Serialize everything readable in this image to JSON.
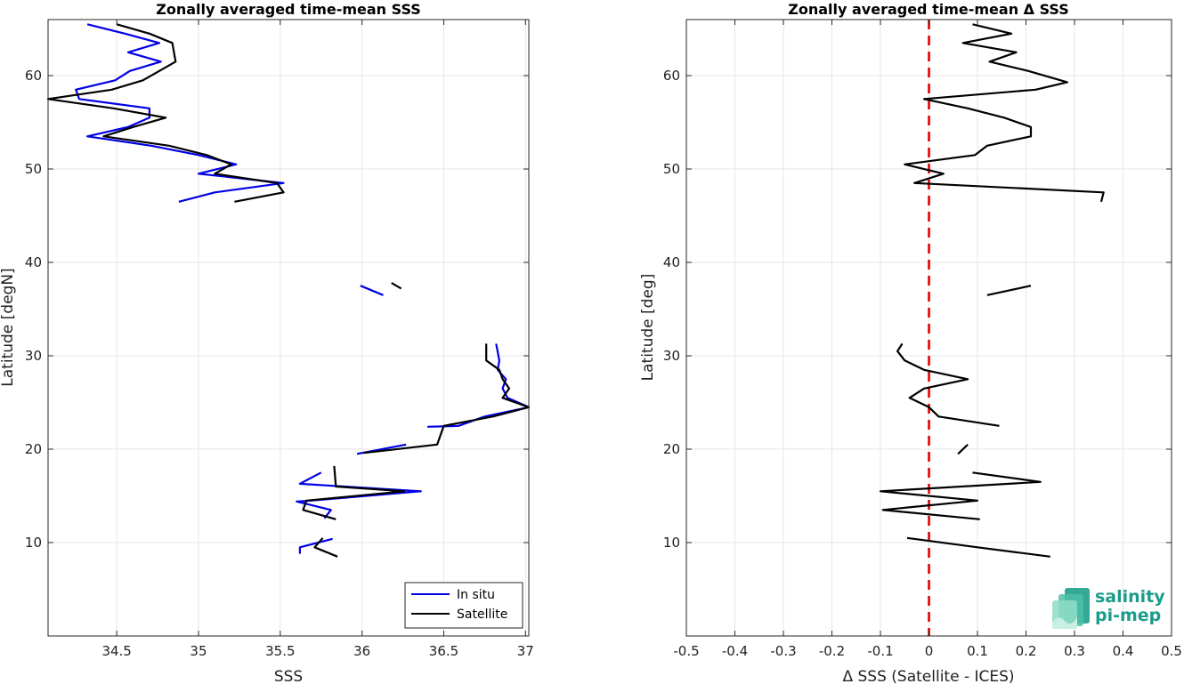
{
  "chart_data": [
    {
      "type": "line",
      "title": "Zonally averaged time-mean SSS",
      "xlabel": "SSS",
      "ylabel": "Latitude [degN]",
      "xlim": [
        34.08,
        37.02
      ],
      "ylim": [
        0,
        66
      ],
      "xticks": [
        34.5,
        35,
        35.5,
        36,
        36.5,
        37
      ],
      "xtick_labels": [
        "34.5",
        "35",
        "35.5",
        "36",
        "36.5",
        "37"
      ],
      "yticks": [
        10,
        20,
        30,
        40,
        50,
        60
      ],
      "ytick_labels": [
        "10",
        "20",
        "30",
        "40",
        "50",
        "60"
      ],
      "grid": true,
      "legend": {
        "position": "bottom-right",
        "entries": [
          "In situ",
          "Satellite"
        ]
      },
      "series": [
        {
          "name": "In situ",
          "color": "#0000e6",
          "segments": [
            [
              [
                34.32,
                65.5
              ],
              [
                34.55,
                64.5
              ],
              [
                34.76,
                63.5
              ],
              [
                34.57,
                62.5
              ],
              [
                34.77,
                61.5
              ],
              [
                34.58,
                60.5
              ],
              [
                34.49,
                59.5
              ],
              [
                34.25,
                58.5
              ],
              [
                34.27,
                57.5
              ],
              [
                34.7,
                56.5
              ],
              [
                34.7,
                55.5
              ],
              [
                34.57,
                54.5
              ],
              [
                34.32,
                53.5
              ],
              [
                34.71,
                52.5
              ],
              [
                35.0,
                51.5
              ],
              [
                35.23,
                50.5
              ],
              [
                35.0,
                49.5
              ],
              [
                35.52,
                48.5
              ],
              [
                35.1,
                47.5
              ],
              [
                34.88,
                46.5
              ]
            ],
            [
              [
                35.99,
                37.5
              ],
              [
                36.13,
                36.5
              ]
            ],
            [
              [
                36.82,
                31.3
              ],
              [
                36.84,
                29.5
              ],
              [
                36.83,
                28.5
              ],
              [
                36.88,
                27.5
              ],
              [
                36.86,
                26.5
              ],
              [
                36.89,
                25.5
              ],
              [
                37.02,
                24.5
              ],
              [
                36.75,
                23.5
              ],
              [
                36.59,
                22.5
              ],
              [
                36.4,
                22.4
              ]
            ],
            [
              [
                36.27,
                20.5
              ],
              [
                35.97,
                19.5
              ]
            ],
            [
              [
                35.75,
                17.5
              ],
              [
                35.62,
                16.3
              ],
              [
                36.36,
                15.5
              ],
              [
                35.69,
                14.5
              ],
              [
                35.6,
                14.4
              ],
              [
                35.81,
                13.5
              ],
              [
                35.77,
                12.6
              ]
            ],
            [
              [
                35.82,
                10.4
              ],
              [
                35.62,
                9.5
              ],
              [
                35.62,
                8.8
              ]
            ]
          ]
        },
        {
          "name": "Satellite",
          "color": "#000000",
          "segments": [
            [
              [
                34.5,
                65.5
              ],
              [
                34.7,
                64.5
              ],
              [
                34.84,
                63.5
              ],
              [
                34.85,
                62.5
              ],
              [
                34.86,
                61.5
              ],
              [
                34.76,
                60.5
              ],
              [
                34.66,
                59.5
              ],
              [
                34.47,
                58.5
              ],
              [
                34.08,
                57.5
              ],
              [
                34.48,
                56.5
              ],
              [
                34.8,
                55.5
              ],
              [
                34.6,
                54.5
              ],
              [
                34.42,
                53.5
              ],
              [
                34.82,
                52.5
              ],
              [
                35.05,
                51.5
              ],
              [
                35.2,
                50.5
              ],
              [
                35.1,
                49.5
              ],
              [
                35.48,
                48.5
              ],
              [
                35.52,
                47.5
              ],
              [
                35.22,
                46.5
              ]
            ],
            [
              [
                36.18,
                37.8
              ],
              [
                36.24,
                37.2
              ]
            ],
            [
              [
                36.76,
                31.3
              ],
              [
                36.76,
                29.5
              ],
              [
                36.84,
                28.5
              ],
              [
                36.86,
                27.5
              ],
              [
                36.9,
                26.5
              ],
              [
                36.86,
                25.5
              ],
              [
                37.02,
                24.5
              ],
              [
                36.8,
                23.5
              ],
              [
                36.5,
                22.5
              ],
              [
                36.46,
                20.5
              ],
              [
                36.01,
                19.6
              ]
            ],
            [
              [
                35.83,
                18.2
              ],
              [
                35.84,
                16.0
              ],
              [
                36.26,
                15.5
              ],
              [
                35.66,
                14.5
              ],
              [
                35.64,
                13.5
              ],
              [
                35.84,
                12.5
              ]
            ],
            [
              [
                35.76,
                10.5
              ],
              [
                35.71,
                9.5
              ],
              [
                35.85,
                8.5
              ]
            ]
          ]
        }
      ]
    },
    {
      "type": "line",
      "title": "Zonally averaged time-mean Δ SSS",
      "xlabel": "Δ SSS (Satellite - ICES)",
      "ylabel": "Latitude [deg]",
      "xlim": [
        -0.5,
        0.5
      ],
      "ylim": [
        0,
        66
      ],
      "xticks": [
        -0.5,
        -0.4,
        -0.3,
        -0.2,
        -0.1,
        0,
        0.1,
        0.2,
        0.3,
        0.4,
        0.5
      ],
      "xtick_labels": [
        "-0.5",
        "-0.4",
        "-0.3",
        "-0.2",
        "-0.1",
        "0",
        "0.1",
        "0.2",
        "0.3",
        "0.4",
        "0.5"
      ],
      "yticks": [
        10,
        20,
        30,
        40,
        50,
        60
      ],
      "ytick_labels": [
        "10",
        "20",
        "30",
        "40",
        "50",
        "60"
      ],
      "grid": true,
      "reference_line": {
        "x": 0,
        "color": "#e60000",
        "style": "dashed"
      },
      "series": [
        {
          "name": "",
          "color": "#000000",
          "segments": [
            [
              [
                0.09,
                65.5
              ],
              [
                0.17,
                64.5
              ],
              [
                0.07,
                63.5
              ],
              [
                0.18,
                62.5
              ],
              [
                0.125,
                61.5
              ],
              [
                0.205,
                60.5
              ],
              [
                0.285,
                59.3
              ],
              [
                0.22,
                58.5
              ],
              [
                -0.01,
                57.5
              ],
              [
                0.08,
                56.5
              ],
              [
                0.155,
                55.5
              ],
              [
                0.21,
                54.5
              ],
              [
                0.21,
                53.5
              ],
              [
                0.12,
                52.5
              ],
              [
                0.095,
                51.5
              ],
              [
                -0.05,
                50.5
              ],
              [
                0.03,
                49.5
              ],
              [
                -0.03,
                48.5
              ],
              [
                0.36,
                47.5
              ],
              [
                0.355,
                46.5
              ]
            ],
            [
              [
                0.12,
                36.5
              ],
              [
                0.21,
                37.5
              ]
            ],
            [
              [
                -0.055,
                31.3
              ],
              [
                -0.065,
                30.5
              ],
              [
                -0.05,
                29.5
              ],
              [
                -0.01,
                28.5
              ],
              [
                0.08,
                27.5
              ],
              [
                -0.01,
                26.5
              ],
              [
                -0.04,
                25.5
              ],
              [
                0.0,
                24.5
              ],
              [
                0.02,
                23.5
              ],
              [
                0.145,
                22.5
              ]
            ],
            [
              [
                0.06,
                19.5
              ],
              [
                0.08,
                20.5
              ]
            ],
            [
              [
                0.09,
                17.5
              ],
              [
                0.23,
                16.5
              ],
              [
                -0.1,
                15.5
              ],
              [
                0.1,
                14.5
              ],
              [
                -0.095,
                13.5
              ],
              [
                0.105,
                12.5
              ]
            ],
            [
              [
                -0.045,
                10.5
              ],
              [
                0.1,
                9.5
              ],
              [
                0.25,
                8.5
              ]
            ]
          ]
        }
      ]
    }
  ],
  "logo": {
    "line1": "salinity",
    "line2": "pi-mep"
  }
}
